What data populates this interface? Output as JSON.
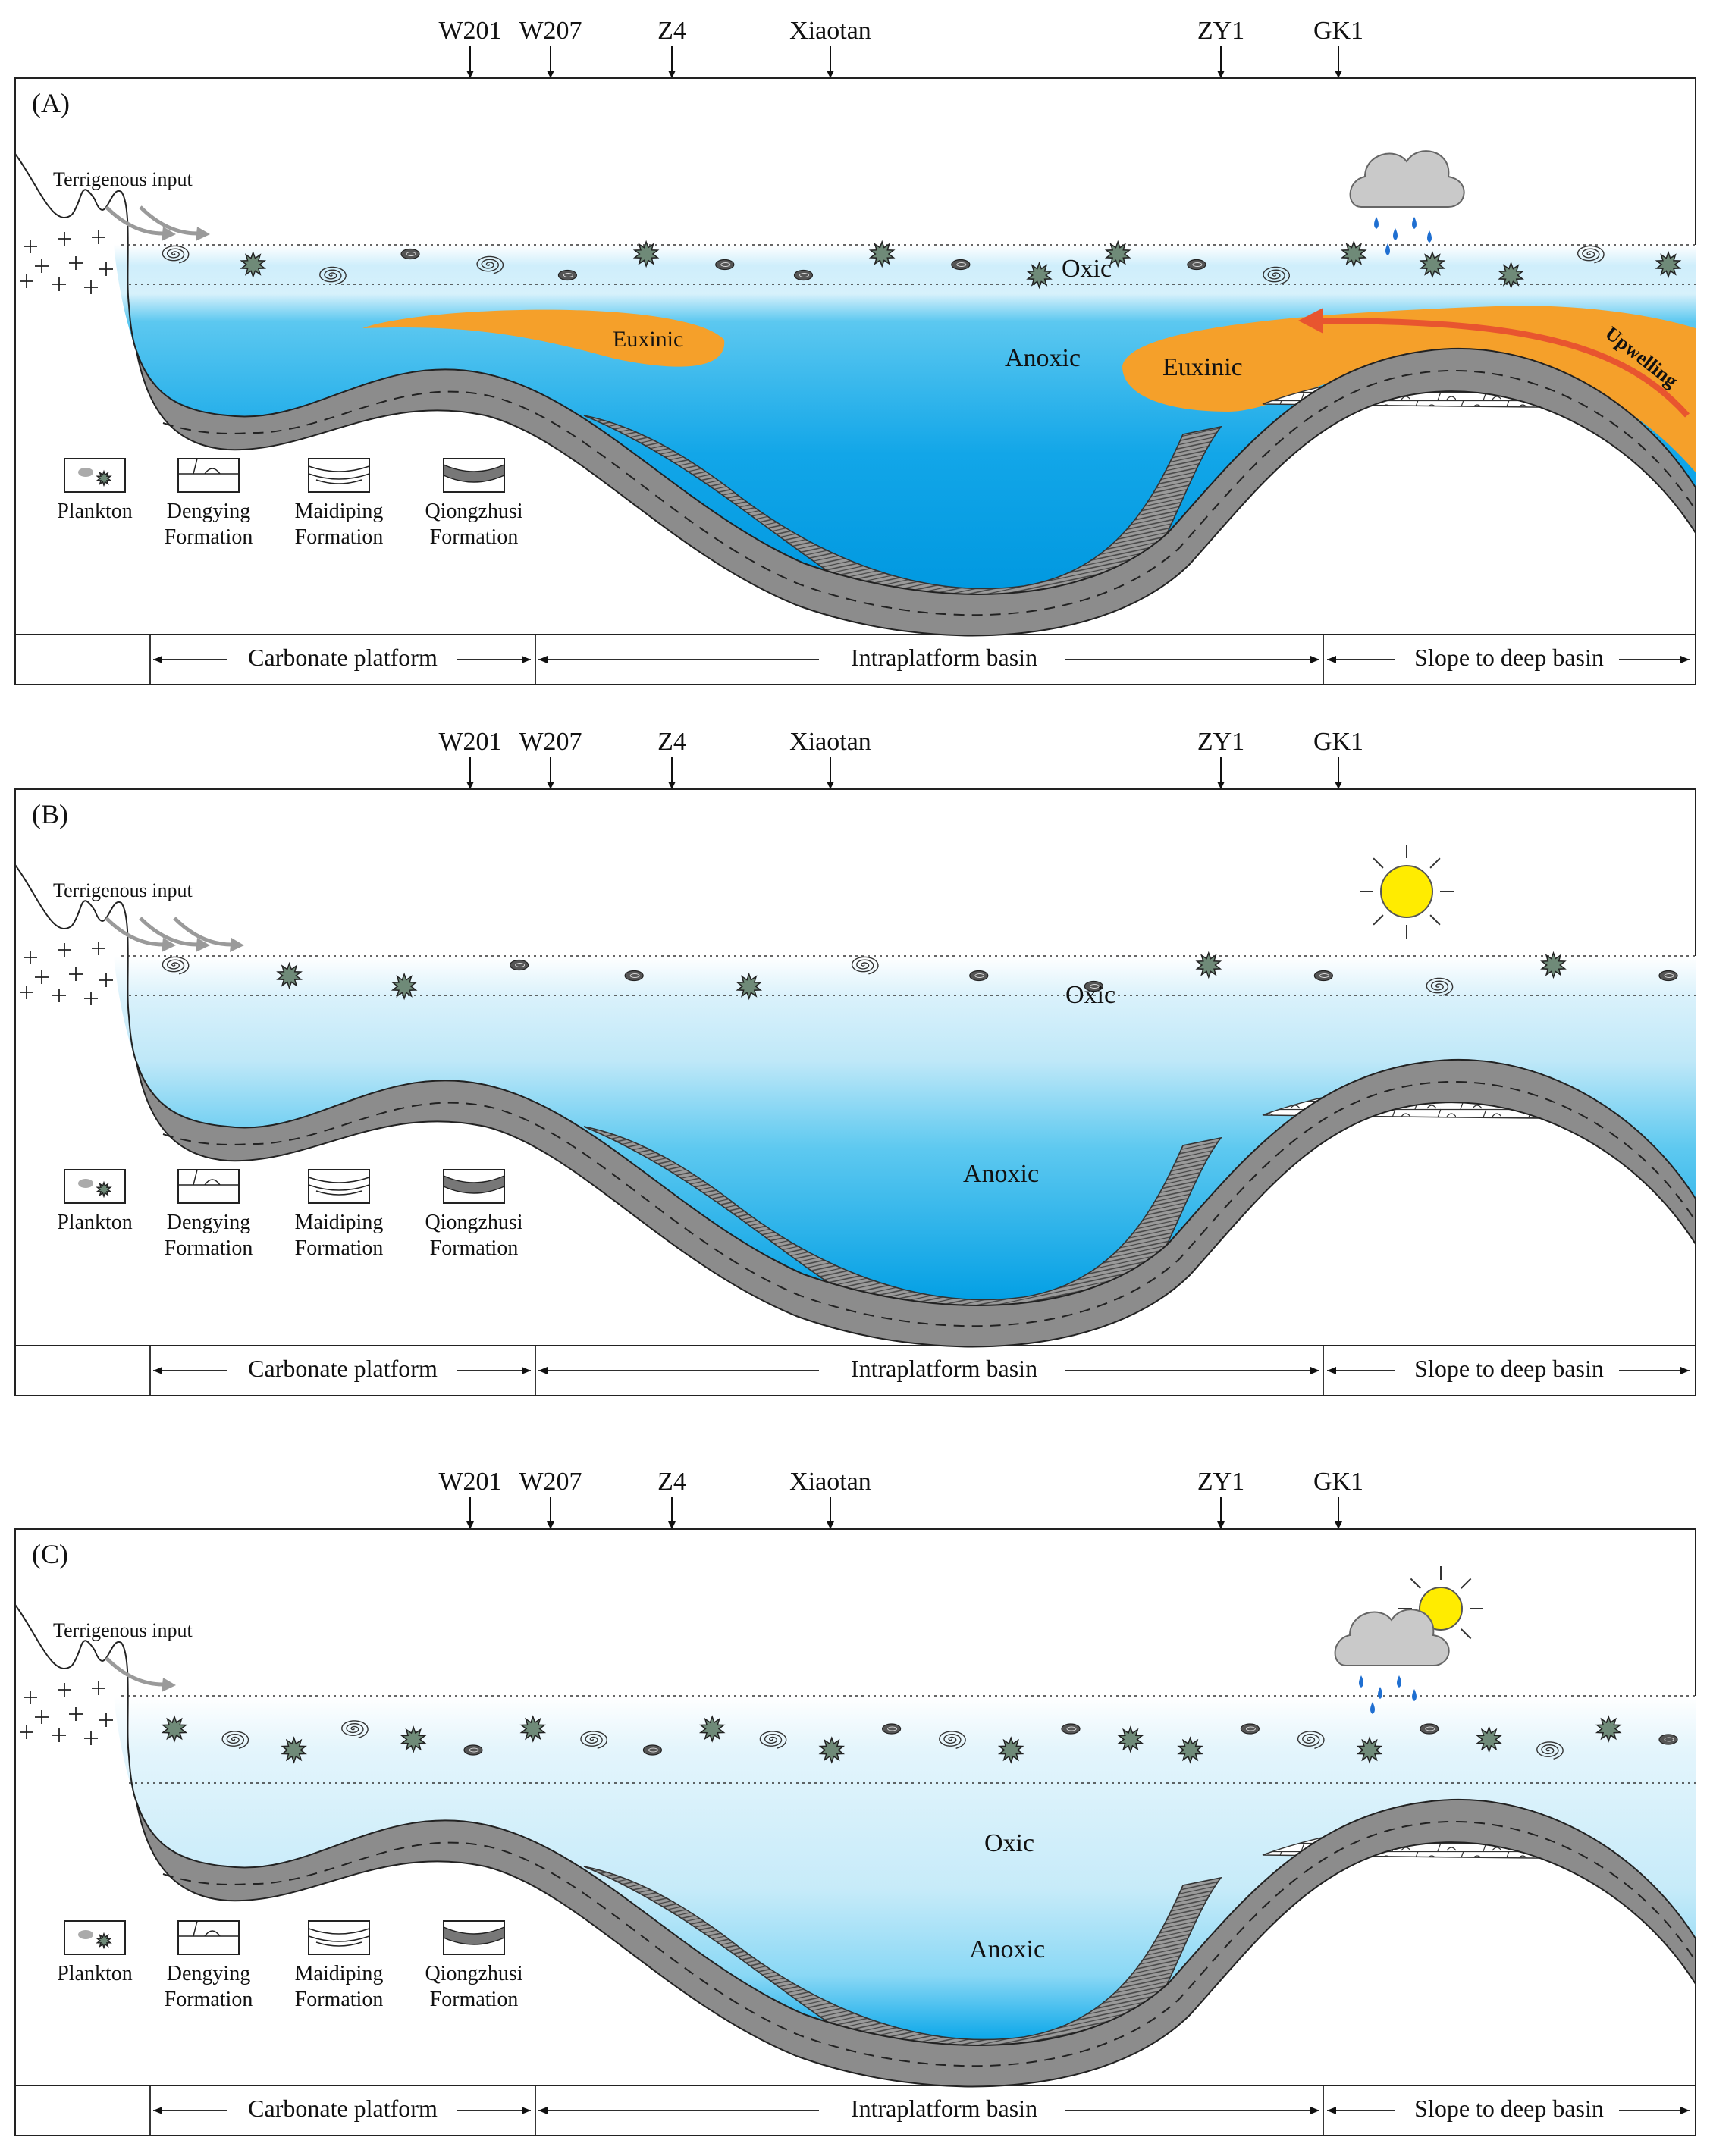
{
  "wells": [
    "W201",
    "W207",
    "Z4",
    "Xiaotan",
    "ZY1",
    "GK1"
  ],
  "legend": {
    "plankton": "Plankton",
    "dengying": [
      "Dengying",
      "Formation"
    ],
    "maidiping": [
      "Maidiping",
      "Formation"
    ],
    "qiongzhusi": [
      "Qiongzhusi",
      "Formation"
    ]
  },
  "zones": {
    "carbonate": "Carbonate platform",
    "intraplatform": "Intraplatform basin",
    "slope": "Slope to deep basin"
  },
  "terrigenous": "Terrigenous input",
  "panels": [
    {
      "tag": "(A)",
      "weather": "rain",
      "labels": {
        "oxic": "Oxic",
        "anoxic": "Anoxic",
        "euxinic": "Euxinic",
        "upwelling": "Upwelling"
      }
    },
    {
      "tag": "(B)",
      "weather": "sun",
      "labels": {
        "oxic": "Oxic",
        "anoxic": "Anoxic"
      }
    },
    {
      "tag": "(C)",
      "weather": "sun-rain",
      "labels": {
        "oxic": "Oxic",
        "anoxic": "Anoxic"
      }
    }
  ],
  "colors": {
    "water_deep": "#00a3e8",
    "water_light": "#d9f1fb",
    "euxinic": "#f5a02a",
    "upwelling": "#e8552f",
    "layer": "#8a8a8a",
    "sun": "#ffec00",
    "cloud": "#c9c9c9",
    "rain": "#1f6fd1",
    "plankton": "#6f8a78"
  }
}
